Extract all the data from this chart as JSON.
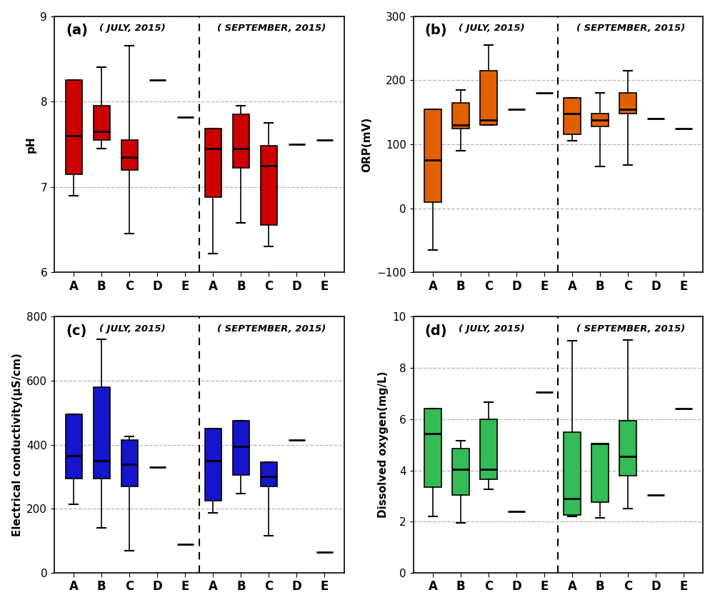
{
  "subplots": [
    {
      "label": "(a)",
      "ylabel": "pH",
      "ylim": [
        6,
        9
      ],
      "yticks": [
        6,
        7,
        8,
        9
      ],
      "color": "#CC0000",
      "time_labels": [
        "( JULY, 2015)",
        "( SEPTEMBER, 2015)"
      ],
      "july": {
        "A": {
          "whislo": 6.9,
          "q1": 7.15,
          "med": 7.6,
          "q3": 8.25,
          "whishi": 8.25,
          "is_single": false
        },
        "B": {
          "whislo": 7.45,
          "q1": 7.55,
          "med": 7.65,
          "q3": 7.95,
          "whishi": 8.4,
          "is_single": false
        },
        "C": {
          "whislo": 6.45,
          "q1": 7.2,
          "med": 7.35,
          "q3": 7.55,
          "whishi": 8.65,
          "is_single": false
        },
        "D": {
          "whislo": 8.25,
          "q1": 8.25,
          "med": 8.25,
          "q3": 8.25,
          "whishi": 8.25,
          "is_single": true
        },
        "E": {
          "whislo": 7.82,
          "q1": 7.82,
          "med": 7.82,
          "q3": 7.82,
          "whishi": 7.82,
          "is_single": true
        }
      },
      "sep": {
        "A": {
          "whislo": 6.22,
          "q1": 6.88,
          "med": 7.45,
          "q3": 7.68,
          "whishi": 7.68,
          "is_single": false
        },
        "B": {
          "whislo": 6.58,
          "q1": 7.22,
          "med": 7.45,
          "q3": 7.85,
          "whishi": 7.95,
          "is_single": false
        },
        "C": {
          "whislo": 6.3,
          "q1": 6.55,
          "med": 7.25,
          "q3": 7.48,
          "whishi": 7.75,
          "is_single": false
        },
        "D": {
          "whislo": 7.5,
          "q1": 7.5,
          "med": 7.5,
          "q3": 7.5,
          "whishi": 7.5,
          "is_single": true
        },
        "E": {
          "whislo": 7.55,
          "q1": 7.55,
          "med": 7.55,
          "q3": 7.55,
          "whishi": 7.55,
          "is_single": true
        }
      }
    },
    {
      "label": "(b)",
      "ylabel": "ORP(mV)",
      "ylim": [
        -100,
        300
      ],
      "yticks": [
        -100,
        0,
        100,
        200,
        300
      ],
      "color": "#E06000",
      "time_labels": [
        "( JULY, 2015)",
        "( SEPTEMBER, 2015)"
      ],
      "july": {
        "A": {
          "whislo": -65,
          "q1": 10,
          "med": 75,
          "q3": 155,
          "whishi": 155,
          "is_single": false
        },
        "B": {
          "whislo": 90,
          "q1": 125,
          "med": 130,
          "q3": 165,
          "whishi": 185,
          "is_single": false
        },
        "C": {
          "whislo": 130,
          "q1": 130,
          "med": 138,
          "q3": 215,
          "whishi": 255,
          "is_single": false
        },
        "D": {
          "whislo": 155,
          "q1": 155,
          "med": 155,
          "q3": 155,
          "whishi": 155,
          "is_single": true
        },
        "E": {
          "whislo": 180,
          "q1": 180,
          "med": 180,
          "q3": 180,
          "whishi": 180,
          "is_single": true
        }
      },
      "sep": {
        "A": {
          "whislo": 105,
          "q1": 115,
          "med": 148,
          "q3": 172,
          "whishi": 172,
          "is_single": false
        },
        "B": {
          "whislo": 65,
          "q1": 128,
          "med": 138,
          "q3": 148,
          "whishi": 180,
          "is_single": false
        },
        "C": {
          "whislo": 68,
          "q1": 148,
          "med": 155,
          "q3": 180,
          "whishi": 215,
          "is_single": false
        },
        "D": {
          "whislo": 140,
          "q1": 140,
          "med": 140,
          "q3": 140,
          "whishi": 140,
          "is_single": true
        },
        "E": {
          "whislo": 125,
          "q1": 125,
          "med": 125,
          "q3": 125,
          "whishi": 125,
          "is_single": true
        }
      }
    },
    {
      "label": "(c)",
      "ylabel": "Electrical conductivity(μS/cm)",
      "ylim": [
        0,
        800
      ],
      "yticks": [
        0,
        200,
        400,
        600,
        800
      ],
      "color": "#1515CC",
      "time_labels": [
        "( JULY, 2015)",
        "( SEPTEMBER, 2015)"
      ],
      "july": {
        "A": {
          "whislo": 215,
          "q1": 295,
          "med": 365,
          "q3": 495,
          "whishi": 495,
          "is_single": false
        },
        "B": {
          "whislo": 140,
          "q1": 295,
          "med": 350,
          "q3": 580,
          "whishi": 730,
          "is_single": false
        },
        "C": {
          "whislo": 68,
          "q1": 270,
          "med": 340,
          "q3": 415,
          "whishi": 425,
          "is_single": false
        },
        "D": {
          "whislo": 330,
          "q1": 330,
          "med": 330,
          "q3": 330,
          "whishi": 330,
          "is_single": true
        },
        "E": {
          "whislo": 88,
          "q1": 88,
          "med": 88,
          "q3": 88,
          "whishi": 88,
          "is_single": true
        }
      },
      "sep": {
        "A": {
          "whislo": 188,
          "q1": 225,
          "med": 350,
          "q3": 450,
          "whishi": 450,
          "is_single": false
        },
        "B": {
          "whislo": 248,
          "q1": 305,
          "med": 395,
          "q3": 475,
          "whishi": 475,
          "is_single": false
        },
        "C": {
          "whislo": 115,
          "q1": 270,
          "med": 300,
          "q3": 345,
          "whishi": 345,
          "is_single": false
        },
        "D": {
          "whislo": 415,
          "q1": 415,
          "med": 415,
          "q3": 415,
          "whishi": 415,
          "is_single": true
        },
        "E": {
          "whislo": 65,
          "q1": 65,
          "med": 65,
          "q3": 65,
          "whishi": 65,
          "is_single": true
        }
      }
    },
    {
      "label": "(d)",
      "ylabel": "Dissolved oxygen(mg/L)",
      "ylim": [
        0,
        10
      ],
      "yticks": [
        0,
        2,
        4,
        6,
        8,
        10
      ],
      "color": "#33BB55",
      "time_labels": [
        "( JULY, 2015)",
        "( SEPTEMBER, 2015)"
      ],
      "july": {
        "A": {
          "whislo": 2.2,
          "q1": 3.35,
          "med": 5.45,
          "q3": 6.4,
          "whishi": 6.4,
          "is_single": false
        },
        "B": {
          "whislo": 1.95,
          "q1": 3.05,
          "med": 4.05,
          "q3": 4.85,
          "whishi": 5.15,
          "is_single": false
        },
        "C": {
          "whislo": 3.25,
          "q1": 3.65,
          "med": 4.05,
          "q3": 6.0,
          "whishi": 6.65,
          "is_single": false
        },
        "D": {
          "whislo": 2.4,
          "q1": 2.4,
          "med": 2.4,
          "q3": 2.4,
          "whishi": 2.4,
          "is_single": true
        },
        "E": {
          "whislo": 7.05,
          "q1": 7.05,
          "med": 7.05,
          "q3": 7.05,
          "whishi": 7.05,
          "is_single": true
        }
      },
      "sep": {
        "A": {
          "whislo": 2.2,
          "q1": 2.25,
          "med": 2.9,
          "q3": 5.5,
          "whishi": 9.05,
          "is_single": false
        },
        "B": {
          "whislo": 2.15,
          "q1": 2.75,
          "med": 5.05,
          "q3": 5.05,
          "whishi": 5.05,
          "is_single": false
        },
        "C": {
          "whislo": 2.5,
          "q1": 3.8,
          "med": 4.55,
          "q3": 5.95,
          "whishi": 9.1,
          "is_single": false
        },
        "D": {
          "whislo": 3.05,
          "q1": 3.05,
          "med": 3.05,
          "q3": 3.05,
          "whishi": 3.05,
          "is_single": true
        },
        "E": {
          "whislo": 6.4,
          "q1": 6.4,
          "med": 6.4,
          "q3": 6.4,
          "whishi": 6.4,
          "is_single": true
        }
      }
    }
  ],
  "categories": [
    "A",
    "B",
    "C",
    "D",
    "E"
  ],
  "box_width": 0.6,
  "background_color": "#ffffff"
}
